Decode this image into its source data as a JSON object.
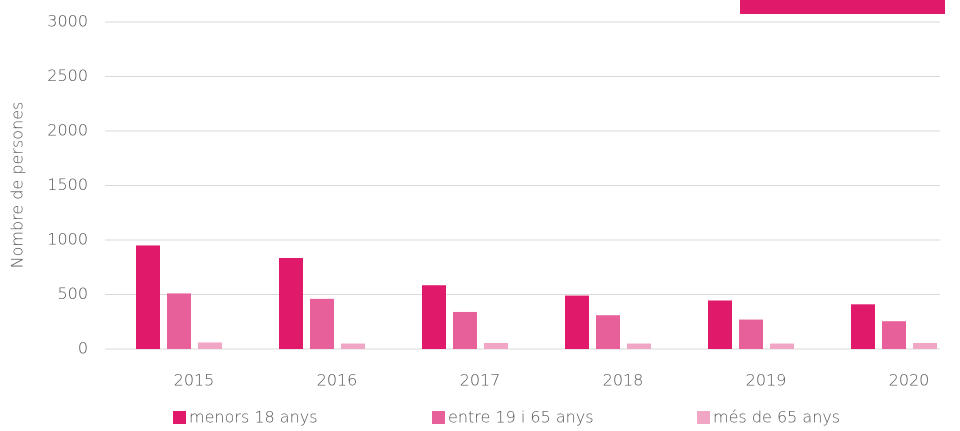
{
  "chart_data": {
    "type": "bar",
    "y_label": "Nombre de persones",
    "categories": [
      "2015",
      "2016",
      "2017",
      "2018",
      "2019",
      "2020"
    ],
    "series": [
      {
        "name": "menors 18 anys",
        "color": "#e0196b",
        "values": [
          950,
          835,
          585,
          490,
          445,
          410
        ]
      },
      {
        "name": "entre 19 i 65 anys",
        "color": "#e8609a",
        "values": [
          510,
          460,
          340,
          310,
          270,
          255
        ]
      },
      {
        "name": "més de 65 anys",
        "color": "#f2a6c5",
        "values": [
          60,
          50,
          55,
          50,
          50,
          55
        ]
      }
    ],
    "ylim": [
      0,
      3000
    ],
    "yticks": [
      0,
      500,
      1000,
      1500,
      2000,
      2500,
      3000
    ],
    "grid": true,
    "legend": "bottom"
  }
}
